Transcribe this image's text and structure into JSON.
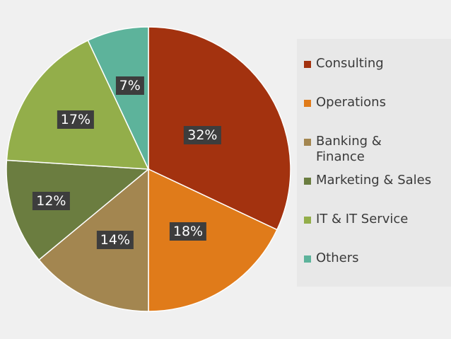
{
  "chart_data": {
    "type": "pie",
    "categories": [
      "Consulting",
      "Operations",
      "Banking & Finance",
      "Marketing & Sales",
      "IT & IT Service",
      "Others"
    ],
    "values": [
      32,
      18,
      14,
      12,
      17,
      7
    ],
    "value_labels": [
      "32%",
      "18%",
      "14%",
      "12%",
      "17%",
      "7%"
    ],
    "colors": [
      "#a3320f",
      "#e07b1a",
      "#a38650",
      "#6b7d40",
      "#93ae4a",
      "#5db39b"
    ],
    "start_angle": "12 o'clock",
    "direction": "clockwise",
    "legend": "right"
  }
}
